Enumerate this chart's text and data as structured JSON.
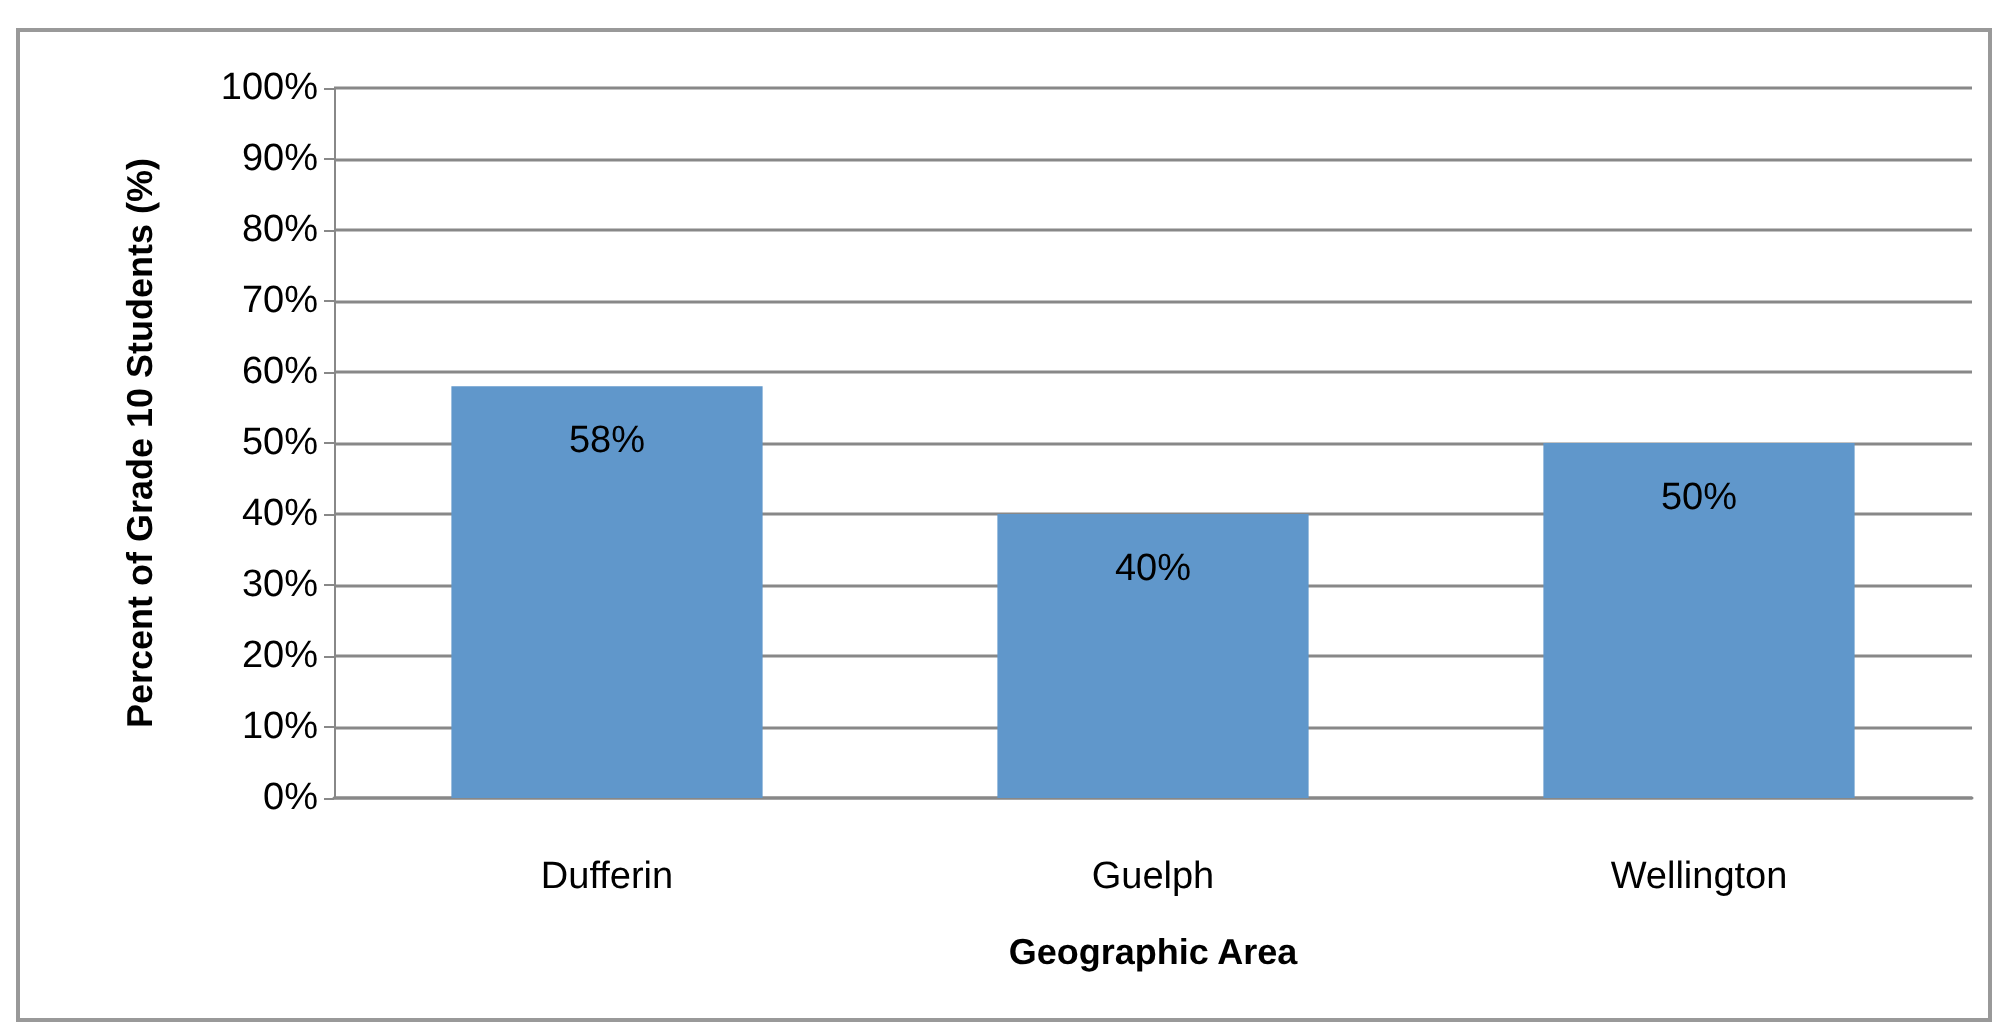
{
  "chart_data": {
    "type": "bar",
    "xlabel": "Geographic Area",
    "ylabel": "Percent of Grade 10 Students (%)",
    "categories": [
      "Dufferin",
      "Guelph",
      "Wellington"
    ],
    "values": [
      58,
      40,
      50
    ],
    "value_labels": [
      "58%",
      "40%",
      "50%"
    ],
    "color": "#6097cb",
    "ylim": [
      0,
      100
    ],
    "yticks": [
      {
        "value": 0,
        "label": "0%"
      },
      {
        "value": 10,
        "label": "10%"
      },
      {
        "value": 20,
        "label": "20%"
      },
      {
        "value": 30,
        "label": "30%"
      },
      {
        "value": 40,
        "label": "40%"
      },
      {
        "value": 50,
        "label": "50%"
      },
      {
        "value": 60,
        "label": "60%"
      },
      {
        "value": 70,
        "label": "70%"
      },
      {
        "value": 80,
        "label": "80%"
      },
      {
        "value": 90,
        "label": "90%"
      },
      {
        "value": 100,
        "label": "100%"
      }
    ],
    "grid": "y"
  }
}
